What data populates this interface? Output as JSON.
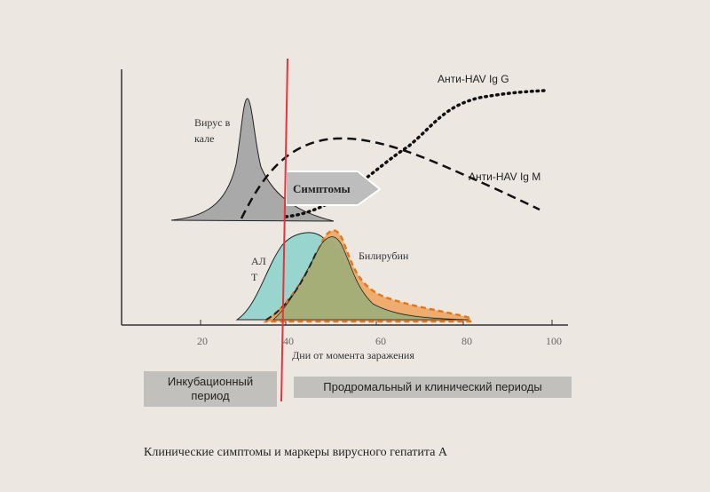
{
  "diagram": {
    "virus_label_line1": "Вирус в",
    "virus_label_line2": "кале",
    "igg_label": "Анти-HAV Ig G",
    "igm_label": "Анти-HAV Ig M",
    "symptoms_label": "Симптомы",
    "alt_label_line1": "АЛ",
    "alt_label_line2": "Т",
    "bilirubin_label": "Билирубин",
    "x_ticks": [
      "20",
      "40",
      "60",
      "80",
      "100"
    ],
    "x_axis_label": "Дни от момента заражения",
    "colors": {
      "alt_fill": "#8fd3cc",
      "bilirubin_fill": "#f0a15a",
      "overlap_fill": "#9fae7a",
      "virus_fill": "#a9a9a9",
      "marker_line": "#e8323c",
      "symptoms_arrow": "#bdbdbd"
    }
  },
  "periods": {
    "incubation": "Инкубационный период",
    "prodromal": "Продромальный и клинический периоды"
  },
  "caption": "Клинические симптомы и маркеры вирусного гепатита А"
}
